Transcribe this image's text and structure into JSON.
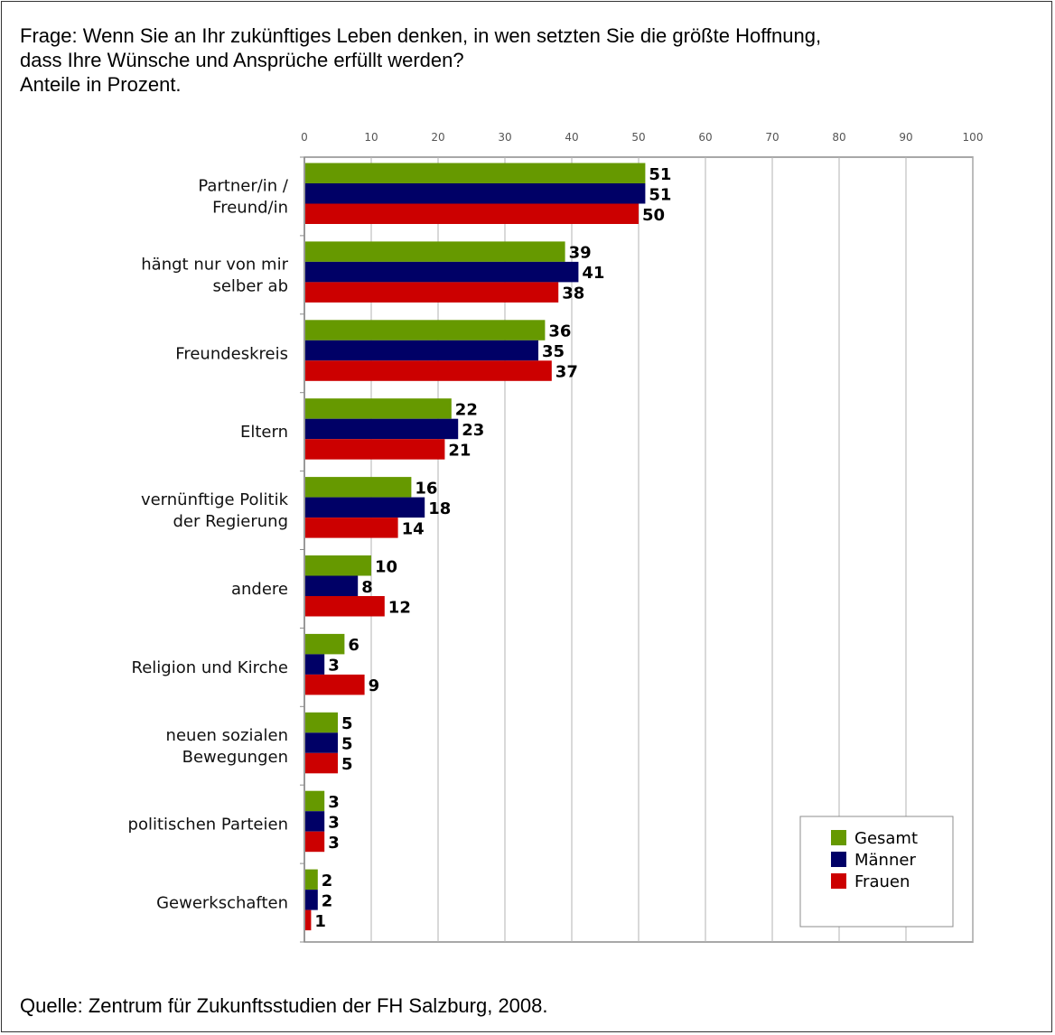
{
  "question": {
    "lines": [
      "Frage: Wenn Sie an Ihr zukünftiges Leben denken, in wen setzten Sie die größte Hoffnung,",
      "dass Ihre Wünsche und Ansprüche erfüllt werden?",
      "Anteile in Prozent."
    ]
  },
  "source": "Quelle: Zentrum für Zukunftsstudien der FH Salzburg, 2008.",
  "chart_data": {
    "type": "bar",
    "orientation": "horizontal",
    "categories": [
      [
        "Partner/in /",
        "Freund/in"
      ],
      [
        "hängt nur von mir",
        "selber ab"
      ],
      [
        "Freundeskreis"
      ],
      [
        "Eltern"
      ],
      [
        "vernünftige Politik",
        "der Regierung"
      ],
      [
        "andere"
      ],
      [
        "Religion und Kirche"
      ],
      [
        "neuen sozialen",
        "Bewegungen"
      ],
      [
        "politischen Parteien"
      ],
      [
        "Gewerkschaften"
      ]
    ],
    "series": [
      {
        "name": "Gesamt",
        "color": "#669900",
        "values": [
          51,
          39,
          36,
          22,
          16,
          10,
          6,
          5,
          3,
          2
        ]
      },
      {
        "name": "Männer",
        "color": "#000066",
        "values": [
          51,
          41,
          35,
          23,
          18,
          8,
          3,
          5,
          3,
          2
        ]
      },
      {
        "name": "Frauen",
        "color": "#cc0000",
        "values": [
          50,
          38,
          37,
          21,
          14,
          12,
          9,
          5,
          3,
          1
        ]
      }
    ],
    "xlim": [
      0,
      100
    ],
    "xticks": [
      0,
      10,
      20,
      30,
      40,
      50,
      60,
      70,
      80,
      90,
      100
    ],
    "grid": true,
    "legend": "bottom-right",
    "gridline_color": "#b3b3b3"
  }
}
